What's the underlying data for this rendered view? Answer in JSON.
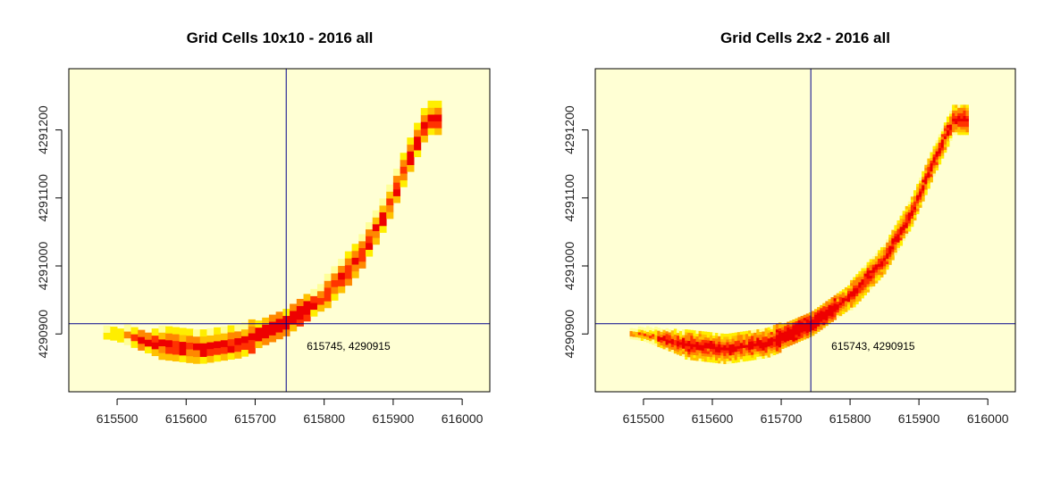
{
  "chart_data": [
    {
      "type": "heatmap",
      "title": "Grid Cells 10x10 - 2016 all",
      "xlabel": "",
      "ylabel": "",
      "xlim": [
        615430,
        616040
      ],
      "ylim": [
        4290815,
        4291290
      ],
      "x_ticks": [
        615500,
        615600,
        615700,
        615800,
        615900,
        616000
      ],
      "x_tick_labels": [
        "615500",
        "615600",
        "615700",
        "615800",
        "615900",
        "616000"
      ],
      "y_ticks": [
        4290900,
        4291000,
        4291100,
        4291200
      ],
      "y_tick_labels": [
        "4290900",
        "4291000",
        "4291100",
        "4291200"
      ],
      "grid": false,
      "background_color": "#ffffd4",
      "palette": [
        "#ffff99",
        "#ffee00",
        "#ffc000",
        "#ff8800",
        "#ff3300",
        "#ee0000"
      ],
      "cell_size": 10,
      "crosshair": {
        "x": 615745,
        "y": 4290915,
        "color": "#00008b"
      },
      "annotation": {
        "text": "615745, 4290915",
        "x": 615745,
        "y": 4290915
      }
    },
    {
      "type": "heatmap",
      "title": "Grid Cells 2x2 - 2016 all",
      "xlabel": "",
      "ylabel": "",
      "xlim": [
        615430,
        616040
      ],
      "ylim": [
        4290815,
        4291290
      ],
      "x_ticks": [
        615500,
        615600,
        615700,
        615800,
        615900,
        616000
      ],
      "x_tick_labels": [
        "615500",
        "615600",
        "615700",
        "615800",
        "615900",
        "616000"
      ],
      "y_ticks": [
        4290900,
        4291000,
        4291100,
        4291200
      ],
      "y_tick_labels": [
        "4290900",
        "4291000",
        "4291100",
        "4291200"
      ],
      "grid": false,
      "background_color": "#ffffd4",
      "palette": [
        "#ffff99",
        "#ffee00",
        "#ffc000",
        "#ff8800",
        "#ff3300",
        "#ee0000"
      ],
      "cell_size": 2,
      "crosshair": {
        "x": 615743,
        "y": 4290915,
        "color": "#00008b"
      },
      "annotation": {
        "text": "615743, 4290915",
        "x": 615743,
        "y": 4290915
      }
    }
  ]
}
